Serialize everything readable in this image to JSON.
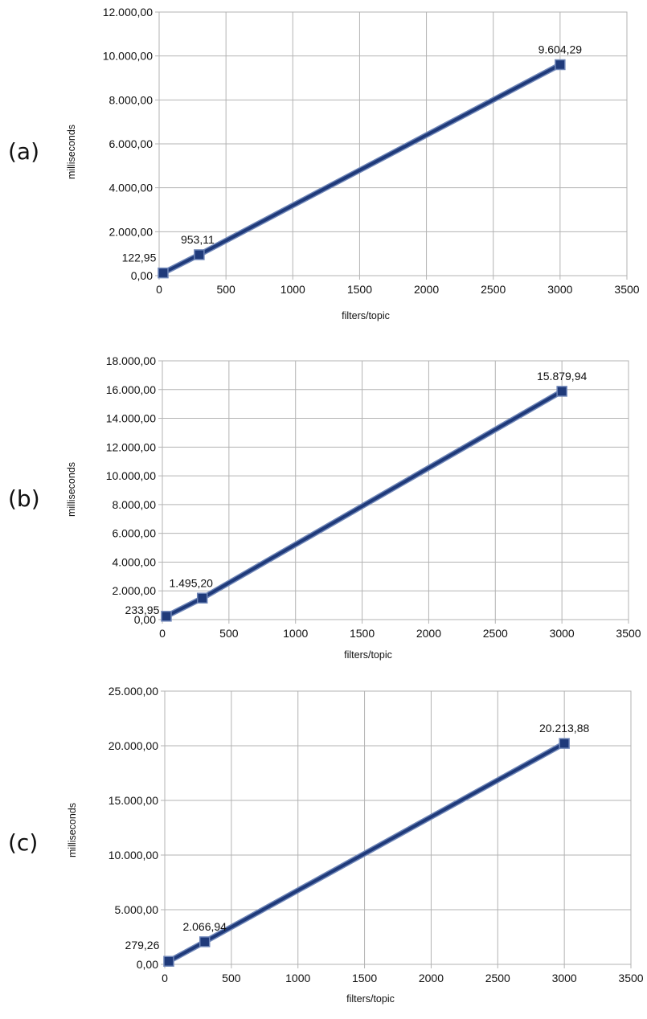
{
  "chart_data": [
    {
      "type": "line",
      "panel_label": "(a)",
      "xlabel": "filters/topic",
      "ylabel": "milliseconds",
      "xlim": [
        0,
        3500
      ],
      "ylim": [
        0,
        12000
      ],
      "x_ticks": [
        "0",
        "500",
        "1000",
        "1500",
        "2000",
        "2500",
        "3000",
        "3500"
      ],
      "y_ticks": [
        "0,00",
        "2.000,00",
        "4.000,00",
        "6.000,00",
        "8.000,00",
        "10.000,00",
        "12.000,00"
      ],
      "grid": true,
      "legend": "none",
      "series": [
        {
          "color": "#1f3a7a",
          "marker": "square",
          "x": [
            30,
            300,
            3000
          ],
          "values": [
            122.95,
            953.11,
            9604.29
          ],
          "data_labels": [
            "122,95",
            "953,11",
            "9.604,29"
          ]
        }
      ]
    },
    {
      "type": "line",
      "panel_label": "(b)",
      "xlabel": "filters/topic",
      "ylabel": "milliseconds",
      "xlim": [
        0,
        3500
      ],
      "ylim": [
        0,
        18000
      ],
      "x_ticks": [
        "0",
        "500",
        "1000",
        "1500",
        "2000",
        "2500",
        "3000",
        "3500"
      ],
      "y_ticks": [
        "0,00",
        "2.000,00",
        "4.000,00",
        "6.000,00",
        "8.000,00",
        "10.000,00",
        "12.000,00",
        "14.000,00",
        "16.000,00",
        "18.000,00"
      ],
      "grid": true,
      "legend": "none",
      "series": [
        {
          "color": "#1f3a7a",
          "marker": "square",
          "x": [
            30,
            300,
            3000
          ],
          "values": [
            233.95,
            1495.2,
            15879.94
          ],
          "data_labels": [
            "233,95",
            "1.495,20",
            "15.879,94"
          ]
        }
      ]
    },
    {
      "type": "line",
      "panel_label": "(c)",
      "xlabel": "filters/topic",
      "ylabel": "milliseconds",
      "xlim": [
        0,
        3500
      ],
      "ylim": [
        0,
        25000
      ],
      "x_ticks": [
        "0",
        "500",
        "1000",
        "1500",
        "2000",
        "2500",
        "3000",
        "3500"
      ],
      "y_ticks": [
        "0,00",
        "5.000,00",
        "10.000,00",
        "15.000,00",
        "20.000,00",
        "25.000,00"
      ],
      "grid": true,
      "legend": "none",
      "series": [
        {
          "color": "#1f3a7a",
          "marker": "square",
          "x": [
            30,
            300,
            3000
          ],
          "values": [
            279.26,
            2066.94,
            20213.88
          ],
          "data_labels": [
            "279,26",
            "2.066,94",
            "20.213,88"
          ]
        }
      ]
    }
  ]
}
